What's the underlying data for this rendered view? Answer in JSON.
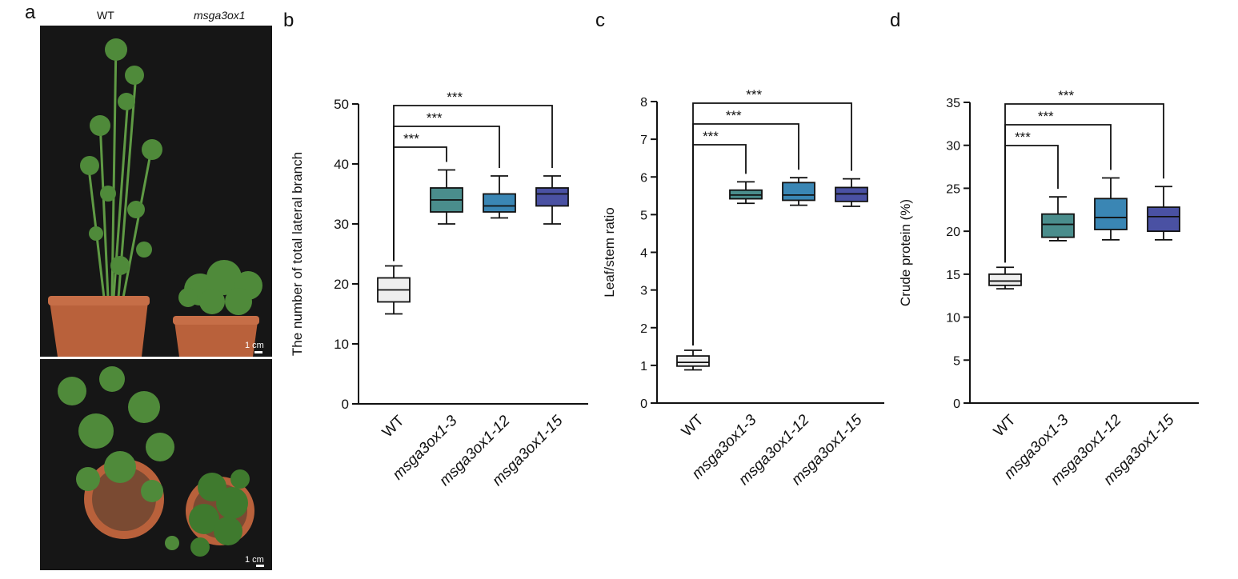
{
  "panels": {
    "a": {
      "letter": "a",
      "col_labels": [
        "WT",
        "msga3ox1"
      ],
      "scale_bar": "1 cm"
    },
    "b_letter": "b",
    "c_letter": "c",
    "d_letter": "d"
  },
  "colors": {
    "WT": "#efefef",
    "msga3ox1-3": "#4a8d8c",
    "msga3ox1-12": "#3a86b4",
    "msga3ox1-15": "#4a51a3",
    "axis": "#111111",
    "photo_background": "#161616",
    "pot": "#b9613b",
    "foliage": "#4f8a3a"
  },
  "chart_data": [
    {
      "panel": "b",
      "type": "box",
      "ylabel": "The number of total lateral branch",
      "ylim": [
        0,
        50
      ],
      "yticks": [
        0,
        10,
        20,
        30,
        40,
        50
      ],
      "categories": [
        "WT",
        "msga3ox1-3",
        "msga3ox1-12",
        "msga3ox1-15"
      ],
      "boxes": [
        {
          "min": 15,
          "q1": 17,
          "median": 19,
          "q3": 21,
          "max": 23
        },
        {
          "min": 30,
          "q1": 32,
          "median": 34,
          "q3": 36,
          "max": 39
        },
        {
          "min": 31,
          "q1": 32,
          "median": 33,
          "q3": 35,
          "max": 38
        },
        {
          "min": 30,
          "q1": 33,
          "median": 35,
          "q3": 36,
          "max": 38
        }
      ],
      "significance": [
        {
          "from": 0,
          "to": 1,
          "label": "***"
        },
        {
          "from": 0,
          "to": 2,
          "label": "***"
        },
        {
          "from": 0,
          "to": 3,
          "label": "***"
        }
      ]
    },
    {
      "panel": "c",
      "type": "box",
      "ylabel": "Leaf/stem ratio",
      "ylim": [
        0,
        8
      ],
      "yticks": [
        0,
        1,
        2,
        3,
        4,
        5,
        6,
        7,
        8
      ],
      "categories": [
        "WT",
        "msga3ox1-3",
        "msga3ox1-12",
        "msga3ox1-15"
      ],
      "boxes": [
        {
          "min": 0.88,
          "q1": 0.98,
          "median": 1.08,
          "q3": 1.25,
          "max": 1.4
        },
        {
          "min": 5.3,
          "q1": 5.42,
          "median": 5.52,
          "q3": 5.65,
          "max": 5.87
        },
        {
          "min": 5.25,
          "q1": 5.38,
          "median": 5.52,
          "q3": 5.85,
          "max": 5.98
        },
        {
          "min": 5.22,
          "q1": 5.35,
          "median": 5.55,
          "q3": 5.72,
          "max": 5.95
        }
      ],
      "significance": [
        {
          "from": 0,
          "to": 1,
          "label": "***"
        },
        {
          "from": 0,
          "to": 2,
          "label": "***"
        },
        {
          "from": 0,
          "to": 3,
          "label": "***"
        }
      ]
    },
    {
      "panel": "d",
      "type": "box",
      "ylabel": "Crude protein (%)",
      "ylim": [
        0,
        35
      ],
      "yticks": [
        0,
        5,
        10,
        15,
        20,
        25,
        30,
        35
      ],
      "categories": [
        "WT",
        "msga3ox1-3",
        "msga3ox1-12",
        "msga3ox1-15"
      ],
      "boxes": [
        {
          "min": 13.3,
          "q1": 13.7,
          "median": 14.2,
          "q3": 15.0,
          "max": 15.8
        },
        {
          "min": 18.9,
          "q1": 19.3,
          "median": 20.8,
          "q3": 22.0,
          "max": 24.0
        },
        {
          "min": 19.0,
          "q1": 20.2,
          "median": 21.6,
          "q3": 23.8,
          "max": 26.2
        },
        {
          "min": 19.0,
          "q1": 20.0,
          "median": 21.7,
          "q3": 22.8,
          "max": 25.2
        }
      ],
      "significance": [
        {
          "from": 0,
          "to": 1,
          "label": "***"
        },
        {
          "from": 0,
          "to": 2,
          "label": "***"
        },
        {
          "from": 0,
          "to": 3,
          "label": "***"
        }
      ]
    }
  ]
}
